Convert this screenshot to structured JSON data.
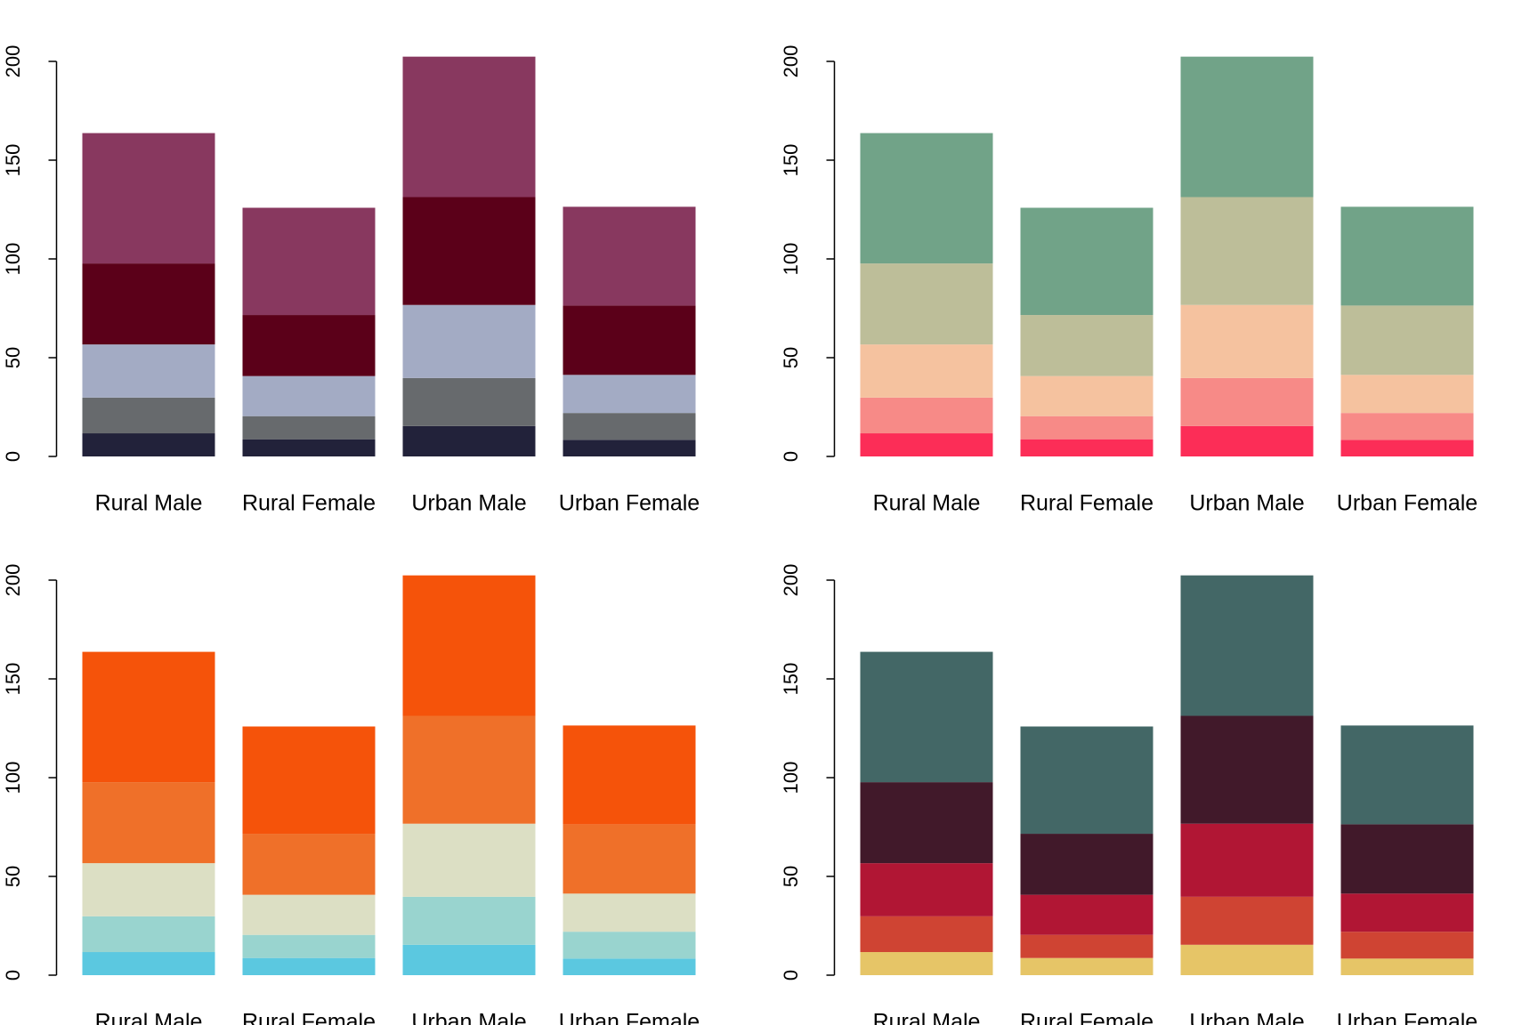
{
  "chart_data": [
    {
      "type": "bar",
      "stacked": true,
      "categories": [
        "Rural Male",
        "Rural Female",
        "Urban Male",
        "Urban Female"
      ],
      "series": [
        {
          "color": "#22223a",
          "values": [
            11.7,
            8.7,
            15.4,
            8.4
          ]
        },
        {
          "color": "#676a6d",
          "values": [
            18.1,
            11.7,
            24.3,
            13.6
          ]
        },
        {
          "color": "#a3abc4",
          "values": [
            26.9,
            20.3,
            37.0,
            19.3
          ]
        },
        {
          "color": "#5b0019",
          "values": [
            41.0,
            30.9,
            54.6,
            35.1
          ]
        },
        {
          "color": "#88385f",
          "values": [
            66.0,
            54.3,
            71.1,
            50.0
          ]
        }
      ],
      "ylim": [
        0,
        210
      ],
      "yticks": [
        0,
        50,
        100,
        150,
        200
      ]
    },
    {
      "type": "bar",
      "stacked": true,
      "categories": [
        "Rural Male",
        "Rural Female",
        "Urban Male",
        "Urban Female"
      ],
      "series": [
        {
          "color": "#fc2d57",
          "values": [
            11.7,
            8.7,
            15.4,
            8.4
          ]
        },
        {
          "color": "#f78a87",
          "values": [
            18.1,
            11.7,
            24.3,
            13.6
          ]
        },
        {
          "color": "#f5c29f",
          "values": [
            26.9,
            20.3,
            37.0,
            19.3
          ]
        },
        {
          "color": "#bdbe99",
          "values": [
            41.0,
            30.9,
            54.6,
            35.1
          ]
        },
        {
          "color": "#71a388",
          "values": [
            66.0,
            54.3,
            71.1,
            50.0
          ]
        }
      ],
      "ylim": [
        0,
        210
      ],
      "yticks": [
        0,
        50,
        100,
        150,
        200
      ]
    },
    {
      "type": "bar",
      "stacked": true,
      "categories": [
        "Rural Male",
        "Rural Female",
        "Urban Male",
        "Urban Female"
      ],
      "series": [
        {
          "color": "#5bc8e0",
          "values": [
            11.7,
            8.7,
            15.4,
            8.4
          ]
        },
        {
          "color": "#99d4cf",
          "values": [
            18.1,
            11.7,
            24.3,
            13.6
          ]
        },
        {
          "color": "#dcdfc4",
          "values": [
            26.9,
            20.3,
            37.0,
            19.3
          ]
        },
        {
          "color": "#ef7029",
          "values": [
            41.0,
            30.9,
            54.6,
            35.1
          ]
        },
        {
          "color": "#f5530a",
          "values": [
            66.0,
            54.3,
            71.1,
            50.0
          ]
        }
      ],
      "ylim": [
        0,
        210
      ],
      "yticks": [
        0,
        50,
        100,
        150,
        200
      ]
    },
    {
      "type": "bar",
      "stacked": true,
      "categories": [
        "Rural Male",
        "Rural Female",
        "Urban Male",
        "Urban Female"
      ],
      "series": [
        {
          "color": "#e6c567",
          "values": [
            11.7,
            8.7,
            15.4,
            8.4
          ]
        },
        {
          "color": "#cf4433",
          "values": [
            18.1,
            11.7,
            24.3,
            13.6
          ]
        },
        {
          "color": "#b11634",
          "values": [
            26.9,
            20.3,
            37.0,
            19.3
          ]
        },
        {
          "color": "#41192a",
          "values": [
            41.0,
            30.9,
            54.6,
            35.1
          ]
        },
        {
          "color": "#436766",
          "values": [
            66.0,
            54.3,
            71.1,
            50.0
          ]
        }
      ],
      "ylim": [
        0,
        210
      ],
      "yticks": [
        0,
        50,
        100,
        150,
        200
      ]
    }
  ]
}
